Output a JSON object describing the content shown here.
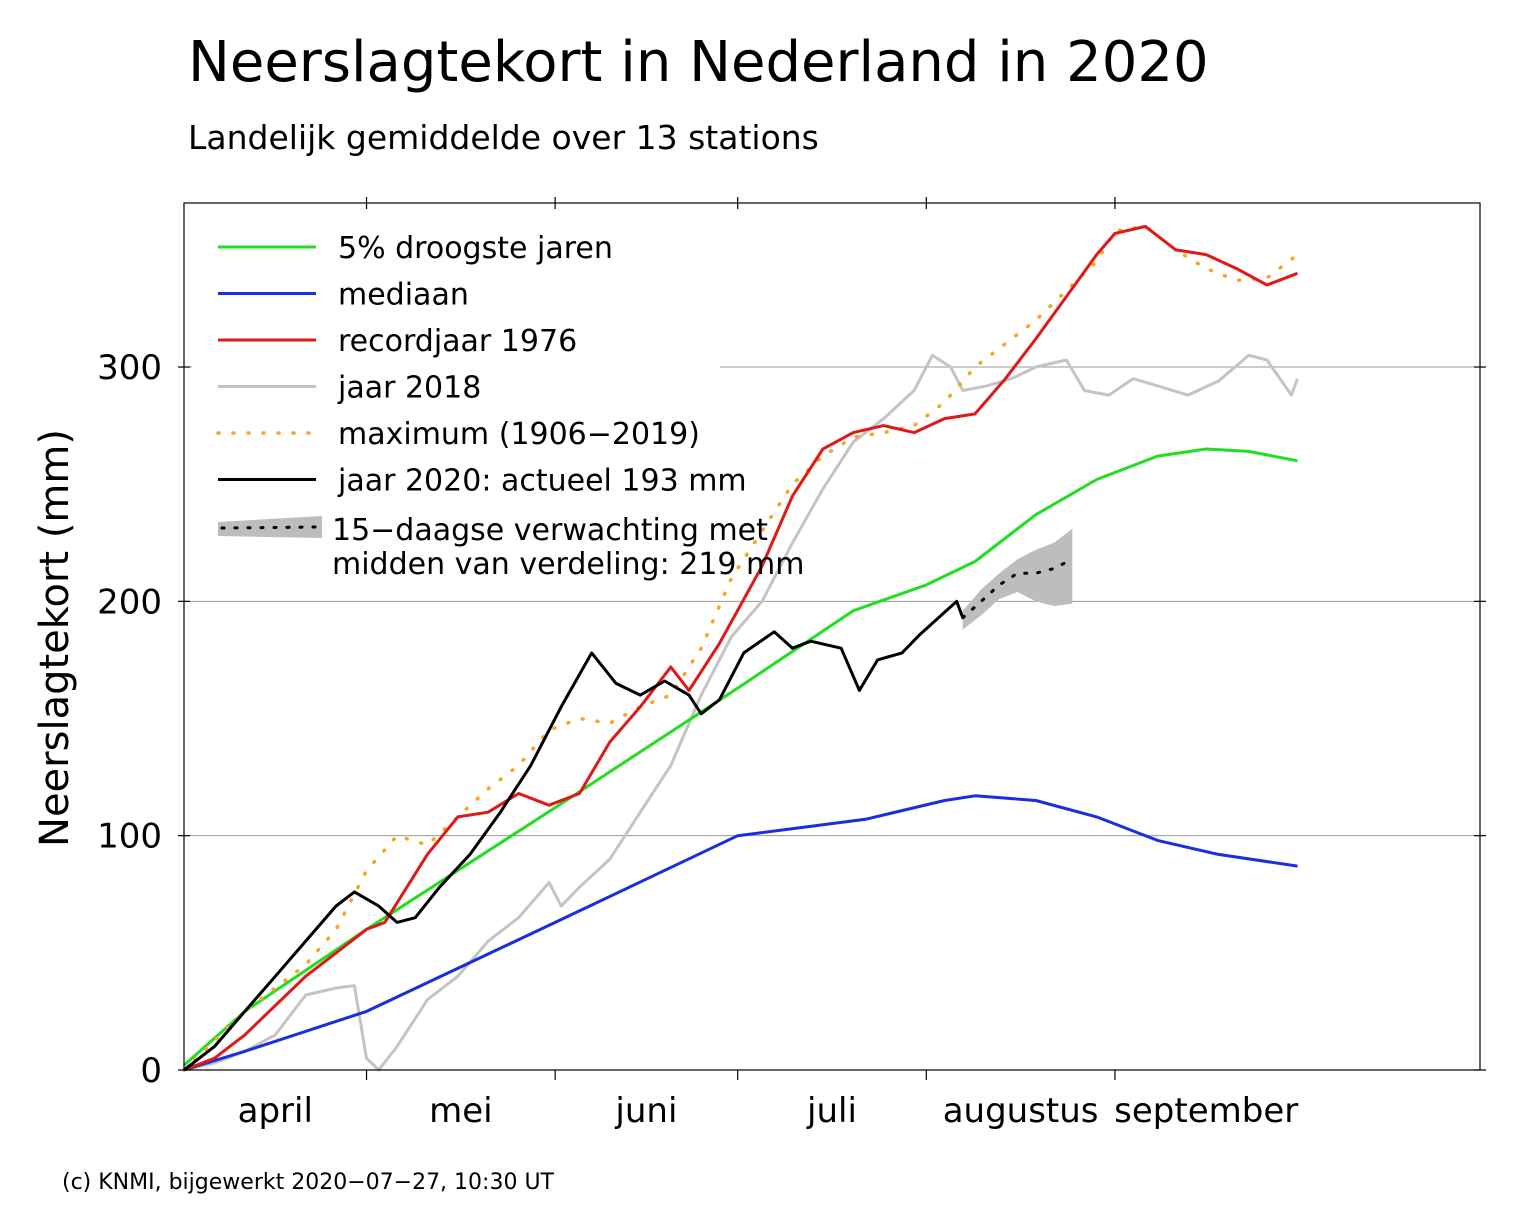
{
  "title": "Neerslagtekort in Nederland in 2020",
  "subtitle": "Landelijk gemiddelde over 13 stations",
  "credit": "(c) KNMI, bijgewerkt 2020−07−27, 10:30 UT",
  "chart_data": {
    "type": "line",
    "ylabel": "Neerslagtekort (mm)",
    "ylim": [
      0,
      370
    ],
    "yticks": [
      0,
      100,
      200,
      300
    ],
    "xlim": [
      0,
      213
    ],
    "months": [
      {
        "label": "april",
        "start": 0,
        "end": 30
      },
      {
        "label": "mei",
        "start": 30,
        "end": 61
      },
      {
        "label": "juni",
        "start": 61,
        "end": 91
      },
      {
        "label": "juli",
        "start": 91,
        "end": 122
      },
      {
        "label": "augustus",
        "start": 122,
        "end": 153
      },
      {
        "label": "september",
        "start": 153,
        "end": 183
      }
    ],
    "grid": "horizontal",
    "legend_position": "top-left",
    "colors": {
      "green": "#22dd22",
      "blue": "#1a2de0",
      "red": "#e01818",
      "grey": "#c4c4c4",
      "orange": "#f5a623",
      "black": "#000000",
      "band": "#bdbdbd"
    },
    "series": [
      {
        "key": "pct5",
        "name": "5% droogste jaren",
        "color": "#22dd22",
        "style": "solid",
        "points": [
          [
            0,
            2
          ],
          [
            10,
            25
          ],
          [
            30,
            60
          ],
          [
            61,
            112
          ],
          [
            91,
            163
          ],
          [
            110,
            196
          ],
          [
            122,
            207
          ],
          [
            130,
            217
          ],
          [
            140,
            237
          ],
          [
            150,
            252
          ],
          [
            160,
            262
          ],
          [
            168,
            265
          ],
          [
            175,
            264
          ],
          [
            183,
            260
          ]
        ]
      },
      {
        "key": "median",
        "name": "mediaan",
        "color": "#1a2de0",
        "style": "solid",
        "points": [
          [
            0,
            0
          ],
          [
            10,
            8
          ],
          [
            30,
            25
          ],
          [
            61,
            63
          ],
          [
            91,
            100
          ],
          [
            112,
            107
          ],
          [
            125,
            115
          ],
          [
            130,
            117
          ],
          [
            140,
            115
          ],
          [
            150,
            108
          ],
          [
            160,
            98
          ],
          [
            170,
            92
          ],
          [
            183,
            87
          ]
        ]
      },
      {
        "key": "y1976",
        "name": "recordjaar 1976",
        "color": "#e01818",
        "style": "solid",
        "points": [
          [
            0,
            0
          ],
          [
            5,
            5
          ],
          [
            10,
            15
          ],
          [
            20,
            40
          ],
          [
            30,
            60
          ],
          [
            33,
            63
          ],
          [
            40,
            92
          ],
          [
            45,
            108
          ],
          [
            50,
            110
          ],
          [
            55,
            118
          ],
          [
            60,
            113
          ],
          [
            65,
            118
          ],
          [
            70,
            140
          ],
          [
            75,
            155
          ],
          [
            80,
            172
          ],
          [
            83,
            162
          ],
          [
            88,
            182
          ],
          [
            95,
            215
          ],
          [
            100,
            245
          ],
          [
            105,
            265
          ],
          [
            110,
            272
          ],
          [
            115,
            275
          ],
          [
            120,
            272
          ],
          [
            125,
            278
          ],
          [
            130,
            280
          ],
          [
            135,
            295
          ],
          [
            140,
            312
          ],
          [
            145,
            330
          ],
          [
            150,
            348
          ],
          [
            153,
            357
          ],
          [
            158,
            360
          ],
          [
            163,
            350
          ],
          [
            168,
            348
          ],
          [
            173,
            342
          ],
          [
            178,
            335
          ],
          [
            183,
            340
          ]
        ]
      },
      {
        "key": "y2018",
        "name": "jaar 2018",
        "color": "#c4c4c4",
        "style": "solid",
        "points": [
          [
            0,
            0
          ],
          [
            5,
            3
          ],
          [
            10,
            8
          ],
          [
            15,
            15
          ],
          [
            20,
            32
          ],
          [
            25,
            35
          ],
          [
            28,
            36
          ],
          [
            30,
            5
          ],
          [
            32,
            0
          ],
          [
            35,
            10
          ],
          [
            40,
            30
          ],
          [
            45,
            40
          ],
          [
            50,
            55
          ],
          [
            55,
            65
          ],
          [
            60,
            80
          ],
          [
            62,
            70
          ],
          [
            65,
            78
          ],
          [
            70,
            90
          ],
          [
            75,
            110
          ],
          [
            80,
            130
          ],
          [
            85,
            160
          ],
          [
            90,
            185
          ],
          [
            95,
            200
          ],
          [
            100,
            225
          ],
          [
            105,
            248
          ],
          [
            110,
            268
          ],
          [
            115,
            278
          ],
          [
            120,
            290
          ],
          [
            123,
            305
          ],
          [
            126,
            300
          ],
          [
            128,
            290
          ],
          [
            132,
            292
          ],
          [
            136,
            295
          ],
          [
            140,
            300
          ],
          [
            145,
            303
          ],
          [
            148,
            290
          ],
          [
            152,
            288
          ],
          [
            156,
            295
          ],
          [
            160,
            292
          ],
          [
            165,
            288
          ],
          [
            170,
            294
          ],
          [
            175,
            305
          ],
          [
            178,
            303
          ],
          [
            182,
            288
          ],
          [
            183,
            295
          ]
        ]
      },
      {
        "key": "max",
        "name": "maximum (1906−2019)",
        "color": "#f5a623",
        "style": "dotted",
        "points": [
          [
            0,
            0
          ],
          [
            10,
            25
          ],
          [
            20,
            45
          ],
          [
            25,
            60
          ],
          [
            30,
            85
          ],
          [
            35,
            100
          ],
          [
            40,
            96
          ],
          [
            45,
            108
          ],
          [
            50,
            120
          ],
          [
            55,
            130
          ],
          [
            60,
            145
          ],
          [
            65,
            150
          ],
          [
            70,
            148
          ],
          [
            75,
            155
          ],
          [
            80,
            160
          ],
          [
            85,
            180
          ],
          [
            90,
            210
          ],
          [
            95,
            230
          ],
          [
            100,
            250
          ],
          [
            105,
            262
          ],
          [
            110,
            270
          ],
          [
            115,
            272
          ],
          [
            120,
            275
          ],
          [
            125,
            285
          ],
          [
            130,
            300
          ],
          [
            140,
            320
          ],
          [
            150,
            345
          ],
          [
            153,
            358
          ],
          [
            158,
            360
          ],
          [
            163,
            350
          ],
          [
            168,
            342
          ],
          [
            173,
            337
          ],
          [
            178,
            338
          ],
          [
            183,
            348
          ]
        ]
      },
      {
        "key": "y2020",
        "name": "jaar 2020: actueel 193 mm",
        "color": "#000000",
        "style": "solid",
        "points": [
          [
            0,
            0
          ],
          [
            5,
            10
          ],
          [
            10,
            25
          ],
          [
            15,
            40
          ],
          [
            20,
            55
          ],
          [
            25,
            70
          ],
          [
            28,
            76
          ],
          [
            30,
            73
          ],
          [
            32,
            70
          ],
          [
            35,
            63
          ],
          [
            38,
            65
          ],
          [
            42,
            78
          ],
          [
            47,
            92
          ],
          [
            52,
            110
          ],
          [
            57,
            130
          ],
          [
            62,
            155
          ],
          [
            67,
            178
          ],
          [
            71,
            165
          ],
          [
            75,
            160
          ],
          [
            79,
            166
          ],
          [
            83,
            160
          ],
          [
            85,
            152
          ],
          [
            88,
            158
          ],
          [
            92,
            178
          ],
          [
            97,
            187
          ],
          [
            100,
            180
          ],
          [
            103,
            183
          ],
          [
            108,
            180
          ],
          [
            111,
            162
          ],
          [
            114,
            175
          ],
          [
            118,
            178
          ],
          [
            121,
            186
          ],
          [
            124,
            193
          ],
          [
            127,
            200
          ],
          [
            128,
            193
          ]
        ]
      },
      {
        "key": "forecast",
        "name": "15−daagse verwachting met midden van verdeling: 219 mm",
        "color": "#000000",
        "style": "dotted-band",
        "final_value": 219,
        "points": [
          [
            128,
            193
          ],
          [
            131,
            200
          ],
          [
            134,
            207
          ],
          [
            137,
            212
          ],
          [
            140,
            212
          ],
          [
            143,
            214
          ],
          [
            146,
            218
          ]
        ],
        "band": {
          "x": [
            128,
            131,
            134,
            137,
            140,
            143,
            146
          ],
          "lower": [
            188,
            194,
            201,
            204,
            200,
            198,
            199
          ],
          "upper": [
            196,
            205,
            212,
            218,
            222,
            225,
            231
          ]
        }
      }
    ]
  }
}
